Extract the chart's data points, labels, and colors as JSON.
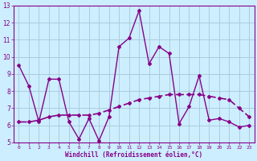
{
  "xlabel": "Windchill (Refroidissement éolien,°C)",
  "background_color": "#cceeff",
  "grid_color": "#aaccdd",
  "line1_x": [
    0,
    1,
    2,
    3,
    4,
    5,
    6,
    7,
    8,
    9,
    10,
    11,
    12,
    13,
    14,
    15,
    16,
    17,
    18,
    19,
    20,
    21,
    22,
    23
  ],
  "line1_y": [
    9.5,
    8.3,
    6.2,
    8.7,
    8.7,
    6.2,
    5.2,
    6.4,
    5.1,
    6.5,
    10.6,
    11.1,
    12.7,
    9.6,
    10.6,
    10.2,
    6.1,
    7.1,
    8.9,
    6.3,
    6.4,
    6.2,
    5.9,
    6.0
  ],
  "line2_x": [
    0,
    1,
    2,
    3,
    4,
    5,
    6,
    7,
    8,
    9,
    10,
    11,
    12,
    13,
    14,
    15,
    16,
    17,
    18,
    19,
    20,
    21,
    22,
    23
  ],
  "line2_y": [
    6.2,
    6.2,
    6.3,
    6.5,
    6.6,
    6.6,
    6.6,
    6.6,
    6.7,
    6.9,
    7.1,
    7.3,
    7.5,
    7.6,
    7.7,
    7.8,
    7.8,
    7.8,
    7.8,
    7.7,
    7.6,
    7.5,
    7.0,
    6.5
  ],
  "line_color": "#880088",
  "line2_color": "#880088",
  "ylim_min": 5,
  "ylim_max": 13,
  "xlim_min": -0.5,
  "xlim_max": 23.5,
  "yticks": [
    5,
    6,
    7,
    8,
    9,
    10,
    11,
    12,
    13
  ],
  "xticks": [
    0,
    1,
    2,
    3,
    4,
    5,
    6,
    7,
    8,
    9,
    10,
    11,
    12,
    13,
    14,
    15,
    16,
    17,
    18,
    19,
    20,
    21,
    22,
    23
  ]
}
